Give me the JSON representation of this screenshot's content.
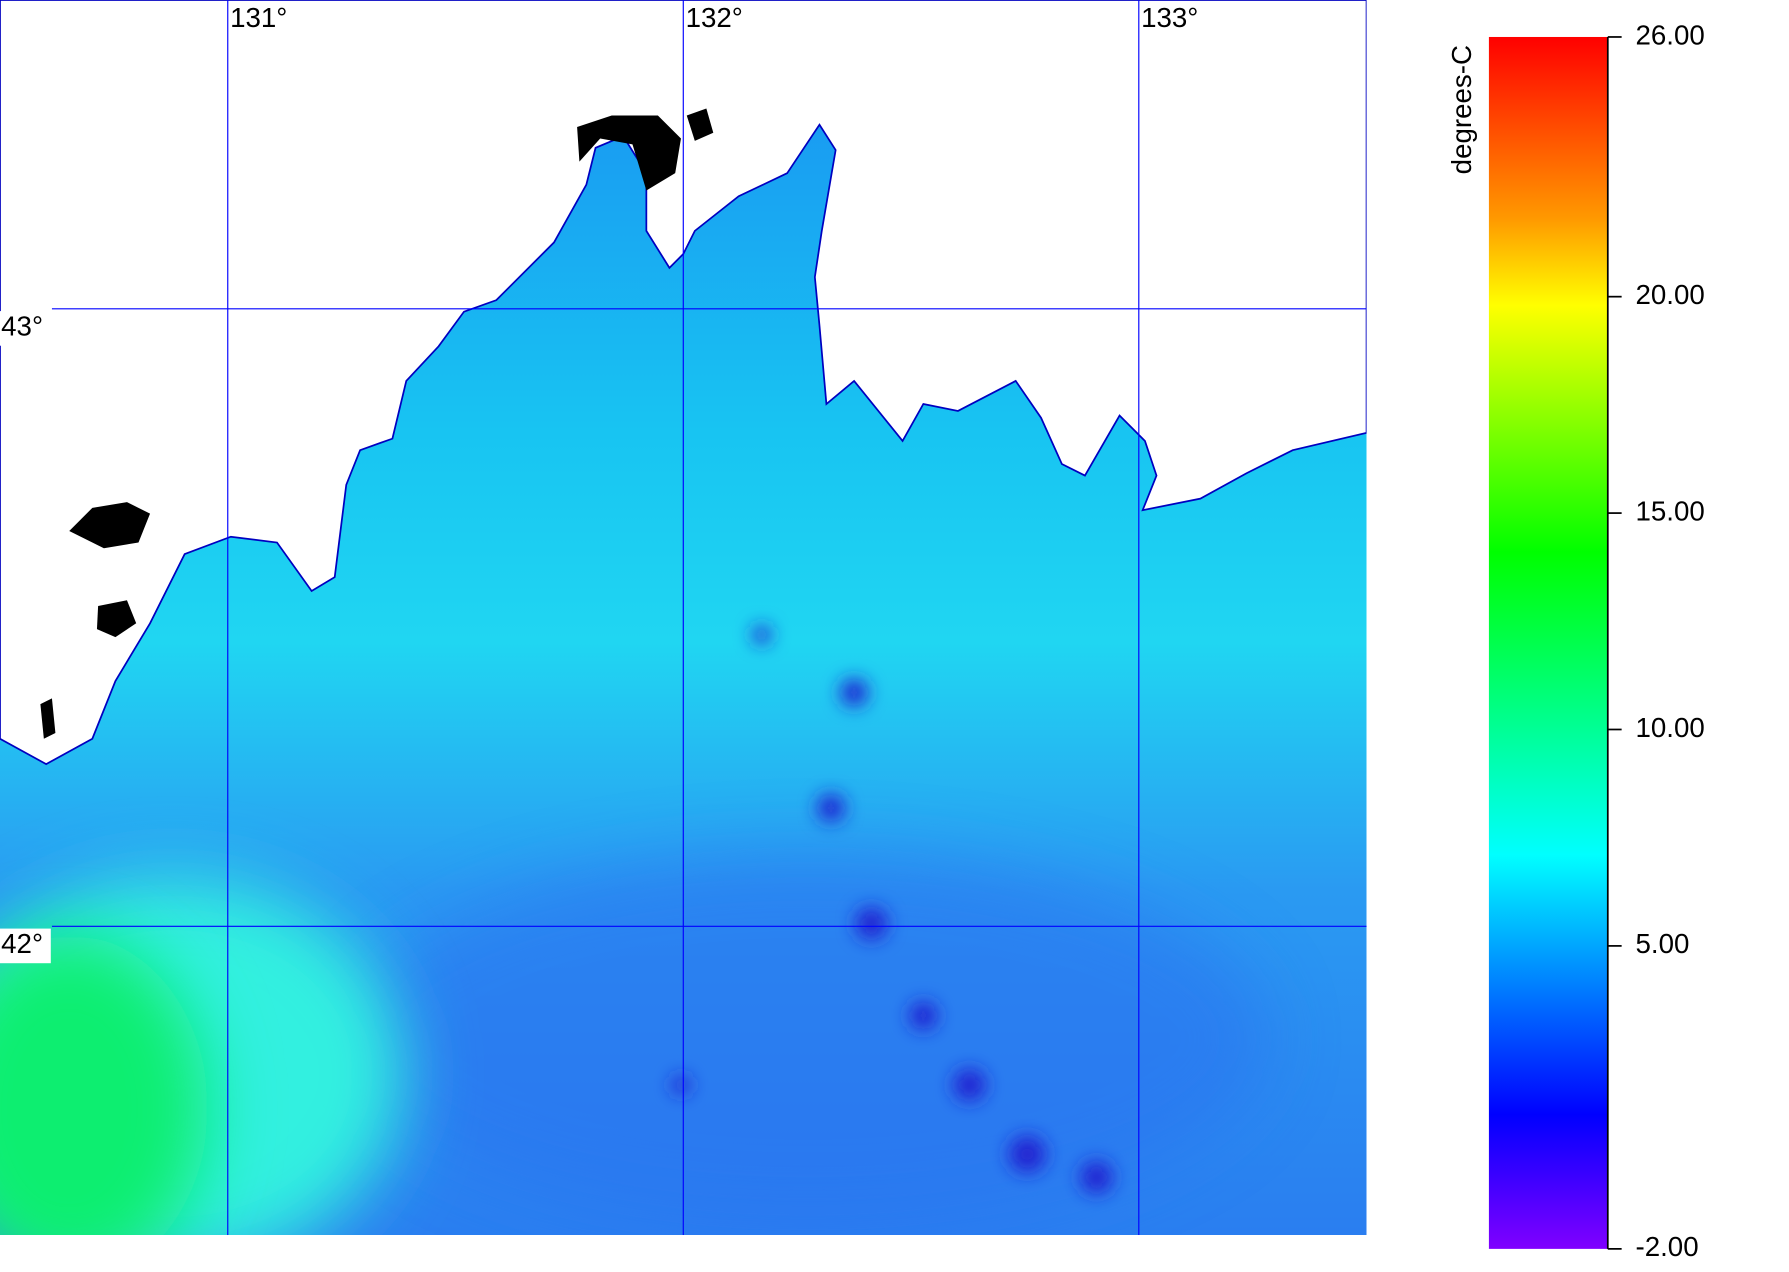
{
  "map": {
    "lonlim": [
      130.5,
      133.5
    ],
    "latlim": [
      41.5,
      43.5
    ],
    "lon_ticks": [
      {
        "value": 131,
        "label": "131°"
      },
      {
        "value": 132,
        "label": "132°"
      },
      {
        "value": 133,
        "label": "133°"
      }
    ],
    "lat_ticks": [
      {
        "value": 43,
        "label": "43°"
      },
      {
        "value": 42,
        "label": "42°"
      }
    ],
    "grid_color": "#0000ff"
  },
  "colorbar": {
    "label": "degrees-C",
    "lim": [
      -2,
      26
    ],
    "ticks": [
      {
        "value": 26,
        "label": "26.00"
      },
      {
        "value": 20,
        "label": "20.00"
      },
      {
        "value": 15,
        "label": "15.00"
      },
      {
        "value": 10,
        "label": "10.00"
      },
      {
        "value": 5,
        "label": "5.00"
      },
      {
        "value": -2,
        "label": "-2.00"
      }
    ],
    "colors": [
      {
        "value": -2,
        "color": "#8000ff"
      },
      {
        "value": 1.1,
        "color": "#0000ff"
      },
      {
        "value": 7.1,
        "color": "#00ffff"
      },
      {
        "value": 14.1,
        "color": "#00ff00"
      },
      {
        "value": 19.8,
        "color": "#ffff00"
      },
      {
        "value": 21.8,
        "color": "#ff9900"
      },
      {
        "value": 26,
        "color": "#ff0000"
      }
    ]
  }
}
